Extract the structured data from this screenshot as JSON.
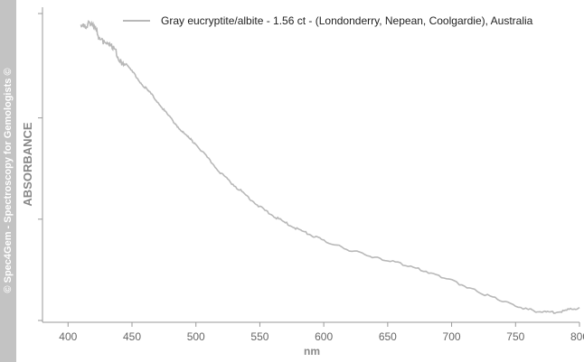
{
  "watermark": "© Spec4Gem - Spectroscopy for Gemologists ©",
  "chart_data": {
    "type": "line",
    "title": "",
    "xlabel": "nm",
    "ylabel": "ABSORBANCE",
    "xlim": [
      380,
      800
    ],
    "ylim": [
      0,
      1
    ],
    "x_ticks": [
      400,
      450,
      500,
      550,
      600,
      650,
      700,
      750,
      800
    ],
    "y_tick_labels": false,
    "grid": false,
    "legend_position": "top-right",
    "series": [
      {
        "name": "Gray eucryptite/albite - 1.56 ct - (Londonderry, Nepean, Coolgardie), Australia",
        "color": "#b8b8b8",
        "x": [
          410,
          415,
          420,
          425,
          430,
          435,
          440,
          445,
          450,
          455,
          460,
          465,
          470,
          475,
          480,
          485,
          490,
          495,
          500,
          510,
          520,
          530,
          540,
          550,
          560,
          570,
          580,
          590,
          600,
          620,
          640,
          660,
          680,
          700,
          720,
          740,
          760,
          770,
          780,
          790,
          800
        ],
        "y": [
          0.975,
          0.962,
          0.948,
          0.928,
          0.905,
          0.882,
          0.858,
          0.835,
          0.812,
          0.785,
          0.76,
          0.737,
          0.712,
          0.685,
          0.66,
          0.636,
          0.612,
          0.592,
          0.575,
          0.525,
          0.478,
          0.44,
          0.405,
          0.37,
          0.342,
          0.318,
          0.297,
          0.278,
          0.26,
          0.23,
          0.205,
          0.185,
          0.16,
          0.13,
          0.095,
          0.062,
          0.035,
          0.028,
          0.027,
          0.033,
          0.042
        ]
      }
    ]
  }
}
